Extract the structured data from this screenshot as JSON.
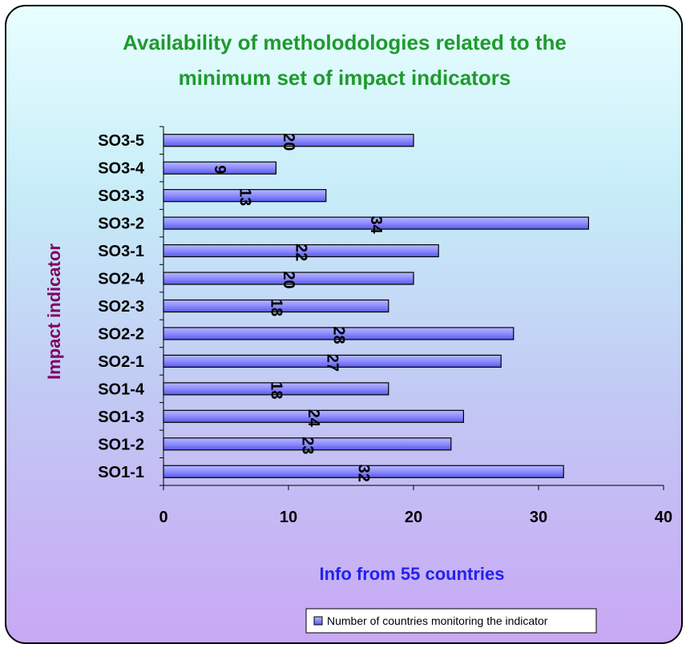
{
  "chart_data": {
    "type": "bar",
    "orientation": "horizontal",
    "title": "Availability of metholodologies related to the minimum set of impact indicators",
    "title_lines": [
      "Availability of metholodologies related to the",
      "minimum set of impact indicators"
    ],
    "ylabel": "Impact indicator",
    "xlabel": "Info from 55 countries",
    "categories": [
      "SO1-1",
      "SO1-2",
      "SO1-3",
      "SO1-4",
      "SO2-1",
      "SO2-2",
      "SO2-3",
      "SO2-4",
      "SO3-1",
      "SO3-2",
      "SO3-3",
      "SO3-4",
      "SO3-5"
    ],
    "series": [
      {
        "name": "Number of countries monitoring the indicator",
        "values": [
          32,
          23,
          24,
          18,
          27,
          28,
          18,
          20,
          22,
          34,
          13,
          9,
          20
        ]
      }
    ],
    "xlim": [
      0,
      40
    ],
    "xticks": [
      0,
      10,
      20,
      30,
      40
    ],
    "grid": false,
    "legend_position": "bottom",
    "colors": {
      "bar": "#8080ff",
      "bar_edge": "#000000",
      "title": "#1f9a2e",
      "ylabel": "#800060",
      "xlabel": "#2222ee"
    }
  }
}
